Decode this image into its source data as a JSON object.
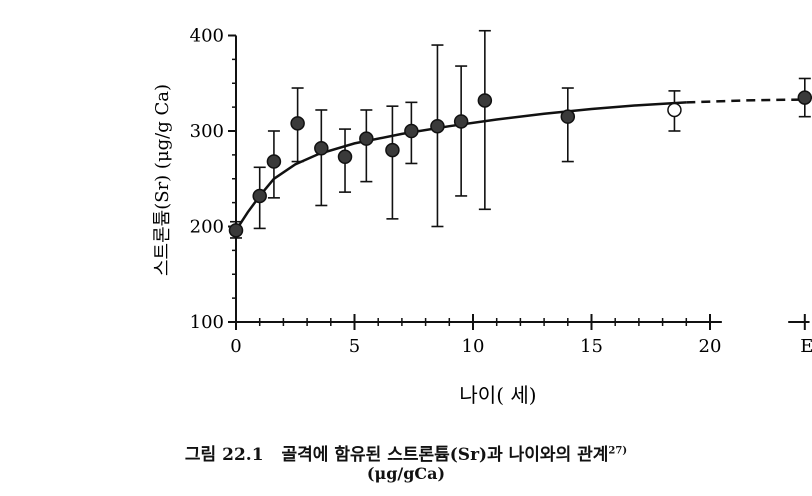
{
  "chart_data": {
    "type": "scatter",
    "title": "",
    "xlabel": "나이( 세)",
    "ylabel": "스트론튬(Sr) (μg/g Ca)",
    "xlim": [
      0,
      24
    ],
    "ylim": [
      100,
      400
    ],
    "x_ticks": [
      "0",
      "5",
      "10",
      "15",
      "20"
    ],
    "x_extra_tick": "E",
    "y_ticks": [
      "100",
      "200",
      "300",
      "400"
    ],
    "grid": false,
    "legend": "none",
    "points": [
      {
        "x": 0.0,
        "y": 196,
        "err_low": 188,
        "err_high": 205,
        "open": false
      },
      {
        "x": 1.0,
        "y": 232,
        "err_low": 198,
        "err_high": 262,
        "open": false
      },
      {
        "x": 1.6,
        "y": 268,
        "err_low": 230,
        "err_high": 300,
        "open": false
      },
      {
        "x": 2.6,
        "y": 308,
        "err_low": 268,
        "err_high": 345,
        "open": false
      },
      {
        "x": 3.6,
        "y": 282,
        "err_low": 222,
        "err_high": 322,
        "open": false
      },
      {
        "x": 4.6,
        "y": 273,
        "err_low": 236,
        "err_high": 302,
        "open": false
      },
      {
        "x": 5.5,
        "y": 292,
        "err_low": 247,
        "err_high": 322,
        "open": false
      },
      {
        "x": 6.6,
        "y": 280,
        "err_low": 208,
        "err_high": 326,
        "open": false
      },
      {
        "x": 7.4,
        "y": 300,
        "err_low": 266,
        "err_high": 330,
        "open": false
      },
      {
        "x": 8.5,
        "y": 305,
        "err_low": 200,
        "err_high": 390,
        "open": false
      },
      {
        "x": 9.5,
        "y": 310,
        "err_low": 232,
        "err_high": 368,
        "open": false
      },
      {
        "x": 10.5,
        "y": 332,
        "err_low": 218,
        "err_high": 405,
        "open": false
      },
      {
        "x": 14.0,
        "y": 315,
        "err_low": 268,
        "err_high": 345,
        "open": false
      },
      {
        "x": 18.5,
        "y": 322,
        "err_low": 300,
        "err_high": 342,
        "open": true
      },
      {
        "x": 24.0,
        "y": 335,
        "err_low": 315,
        "err_high": 355,
        "open": false
      }
    ],
    "fit_curve": {
      "solid": [
        [
          0,
          196
        ],
        [
          0.5,
          215
        ],
        [
          1,
          232
        ],
        [
          1.6,
          250
        ],
        [
          2.5,
          265
        ],
        [
          3.5,
          276
        ],
        [
          5,
          287
        ],
        [
          7,
          297
        ],
        [
          9,
          305
        ],
        [
          11,
          312
        ],
        [
          13,
          318
        ],
        [
          15,
          323
        ],
        [
          17,
          327
        ],
        [
          19,
          330
        ]
      ],
      "dashed": [
        [
          19,
          330
        ],
        [
          21.5,
          332
        ],
        [
          24,
          333
        ]
      ]
    }
  },
  "caption": {
    "figure_no": "그림 22.1",
    "text": "골격에 함유된 스트론튬(Sr)과 나이와의 관계",
    "ref": "27)",
    "unit": "(μg/gCa)"
  }
}
